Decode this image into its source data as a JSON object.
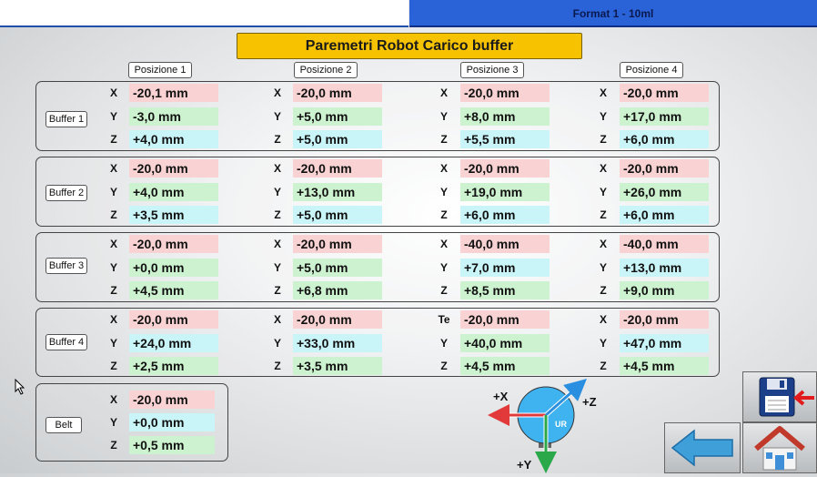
{
  "header": {
    "format": "Format 1 - 10ml"
  },
  "title": "Paremetri Robot Carico buffer",
  "positions": [
    "Posizione 1",
    "Posizione 2",
    "Posizione 3",
    "Posizione 4"
  ],
  "buffers": [
    {
      "label": "Buffer 1",
      "values": [
        {
          "x": "-20,1 mm",
          "y": "-3,0 mm",
          "z": "+4,0 mm"
        },
        {
          "x": "-20,0 mm",
          "y": "+5,0 mm",
          "z": "+5,0 mm"
        },
        {
          "x": "-20,0 mm",
          "y": "+8,0 mm",
          "z": "+5,5 mm"
        },
        {
          "x": "-20,0 mm",
          "y": "+17,0 mm",
          "z": "+6,0 mm"
        }
      ]
    },
    {
      "label": "Buffer 2",
      "values": [
        {
          "x": "-20,0 mm",
          "y": "+4,0 mm",
          "z": "+3,5 mm"
        },
        {
          "x": "-20,0 mm",
          "y": "+13,0 mm",
          "z": "+5,0 mm"
        },
        {
          "x": "-20,0 mm",
          "y": "+19,0 mm",
          "z": "+6,0 mm"
        },
        {
          "x": "-20,0 mm",
          "y": "+26,0 mm",
          "z": "+6,0 mm"
        }
      ]
    },
    {
      "label": "Buffer 3",
      "values": [
        {
          "x": "-20,0 mm",
          "y": "+0,0 mm",
          "z": "+4,5 mm"
        },
        {
          "x": "-20,0 mm",
          "y": "+5,0 mm",
          "z": "+6,8 mm"
        },
        {
          "x": "-40,0 mm",
          "y": "+7,0 mm",
          "z": "+8,5 mm"
        },
        {
          "x": "-40,0 mm",
          "y": "+13,0 mm",
          "z": "+9,0 mm"
        }
      ]
    },
    {
      "label": "Buffer 4",
      "values": [
        {
          "x": "-20,0 mm",
          "y": "+24,0 mm",
          "z": "+2,5 mm"
        },
        {
          "x": "-20,0 mm",
          "y": "+33,0 mm",
          "z": "+3,5 mm"
        },
        {
          "x": "-20,0 mm",
          "y": "+40,0 mm",
          "z": "+4,5 mm"
        },
        {
          "x": "-20,0 mm",
          "y": "+47,0 mm",
          "z": "+4,5 mm"
        }
      ]
    }
  ],
  "axis_labels": {
    "x": "X",
    "y": "Y",
    "z": "Z",
    "buffer4_pos3_x": "Te"
  },
  "belt": {
    "label": "Belt",
    "x": "-20,0 mm",
    "y": "+0,0 mm",
    "z": "+0,5 mm"
  },
  "diagram": {
    "plus_x": "+X",
    "plus_y": "+Y",
    "plus_z": "+Z",
    "ur": "UR"
  },
  "icons": {
    "save": "save-to-device-icon",
    "back": "back-arrow-icon",
    "home": "home-icon"
  },
  "colors": {
    "header_blue": "#2a63d8",
    "title_yellow": "#f7c300",
    "x_field": "#f9d3d3",
    "y_field": "#cdf2cf",
    "z_field": "#c9f4f8"
  }
}
